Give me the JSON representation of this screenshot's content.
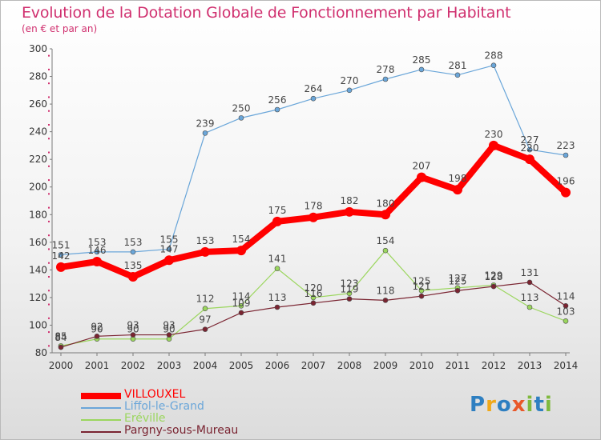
{
  "title": "Evolution de la Dotation Globale de Fonctionnement par Habitant",
  "subtitle": "(en € et par an)",
  "logo": {
    "text": [
      "P",
      "r",
      "o",
      "x",
      "i",
      "t",
      "i"
    ],
    "colors": [
      "#2e7fc1",
      "#f0a91a",
      "#2e7fc1",
      "#e9582a",
      "#7fb93d",
      "#2e7fc1",
      "#7fb93d"
    ]
  },
  "chart_data": {
    "type": "line",
    "x": [
      "2000",
      "2001",
      "2002",
      "2003",
      "2004",
      "2005",
      "2006",
      "2007",
      "2008",
      "2009",
      "2010",
      "2011",
      "2012",
      "2013",
      "2014"
    ],
    "ylim": [
      80,
      300
    ],
    "yticks": [
      "80",
      "100",
      "120",
      "140",
      "160",
      "180",
      "200",
      "220",
      "240",
      "260",
      "280",
      "300"
    ],
    "grid": false,
    "legend_position": "bottom-left",
    "series": [
      {
        "name": "Liffol-le-Grand",
        "color": "#6aa6d9",
        "values": [
          151,
          153,
          153,
          155,
          239,
          250,
          256,
          264,
          270,
          278,
          285,
          281,
          288,
          227,
          223
        ],
        "labels": [
          "151",
          "153",
          "153",
          "155",
          "239",
          "250",
          "256",
          "264",
          "270",
          "278",
          "285",
          "281",
          "288",
          "227",
          "223"
        ]
      },
      {
        "name": "Eréville",
        "color": "#9bd65e",
        "values": [
          85,
          90,
          90,
          90,
          112,
          114,
          141,
          120,
          123,
          154,
          125,
          127,
          129,
          113,
          103
        ],
        "labels": [
          "85",
          "90",
          "90",
          "90",
          "112",
          "114",
          "141",
          "120",
          "123",
          "154",
          "125",
          "127",
          "129",
          "113",
          "103"
        ]
      },
      {
        "name": "Pargny-sous-Mureau",
        "color": "#7a2431",
        "values": [
          84,
          92,
          93,
          93,
          97,
          109,
          113,
          116,
          119,
          118,
          121,
          125,
          128,
          131,
          114
        ],
        "labels": [
          "84",
          "92",
          "93",
          "93",
          "97",
          "109",
          "113",
          "116",
          "119",
          "118",
          "121",
          "125",
          "128",
          "131",
          "114"
        ]
      },
      {
        "name": "VILLOUXEL",
        "color": "#ff0000",
        "values": [
          142,
          146,
          135,
          147,
          153,
          154,
          175,
          178,
          182,
          180,
          207,
          198,
          230,
          220,
          196
        ],
        "labels": [
          "142",
          "146",
          "135",
          "147",
          "153",
          "154",
          "175",
          "178",
          "182",
          "180",
          "207",
          "198",
          "230",
          "220",
          "196"
        ]
      }
    ]
  },
  "legend": [
    {
      "label": "VILLOUXEL",
      "color": "#ff0000"
    },
    {
      "label": "Liffol-le-Grand",
      "color": "#6aa6d9"
    },
    {
      "label": "Eréville",
      "color": "#9bd65e"
    },
    {
      "label": "Pargny-sous-Mureau",
      "color": "#7a2431"
    }
  ]
}
